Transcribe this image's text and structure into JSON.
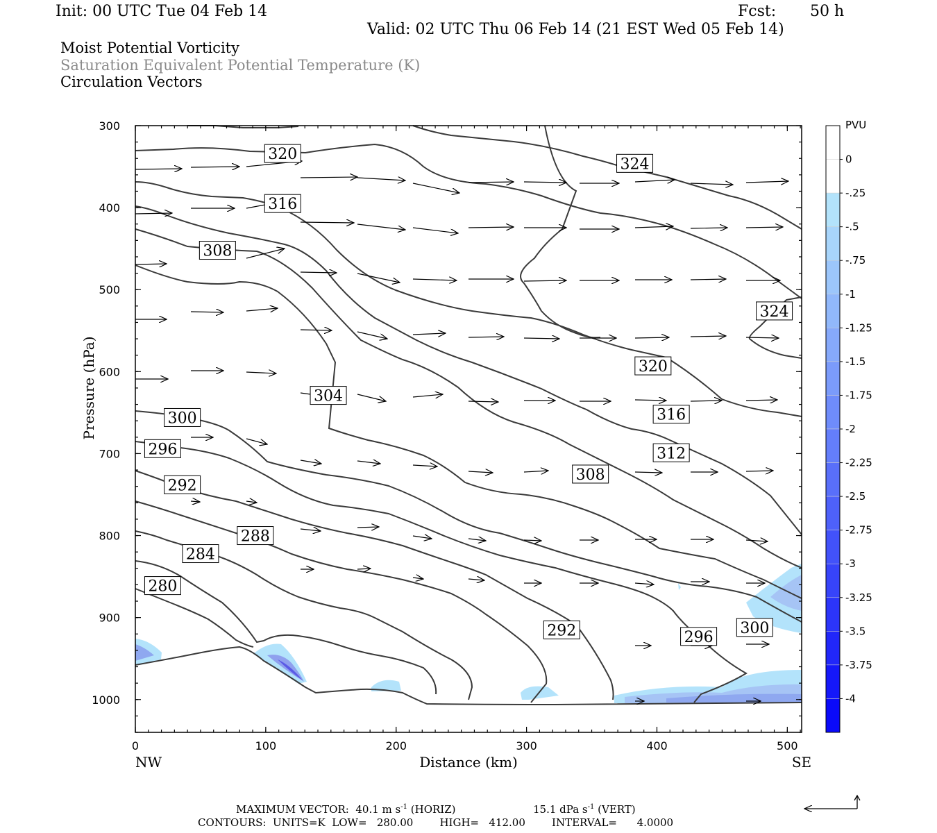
{
  "header": {
    "init": "Init: 00 UTC Tue 04 Feb 14",
    "fcst_label": "Fcst:",
    "fcst_value": "50 h",
    "valid": "Valid: 02 UTC Thu 06 Feb 14 (21 EST Wed 05 Feb 14)"
  },
  "titles": {
    "line1": "Moist Potential Vorticity",
    "line2": "Saturation Equivalent Potential Temperature (K)",
    "line3": "Circulation Vectors"
  },
  "colors": {
    "line2_text": "#8a8a8a",
    "contour": "#3a3a3a",
    "pv_shade_light": "#b3e3fb",
    "pv_shade_dark": "#5a5ae6"
  },
  "chart_data": {
    "type": "contour",
    "xlabel": "Distance (km)",
    "ylabel": "Pressure (hPa)",
    "xlim": [
      0,
      511
    ],
    "ylim": [
      1040,
      300
    ],
    "x_ticks": [
      0,
      100,
      200,
      300,
      400,
      500
    ],
    "x_tick_labels": [
      "0",
      "100",
      "200",
      "300",
      "400",
      "500"
    ],
    "y_ticks": [
      300,
      400,
      500,
      600,
      700,
      800,
      900,
      1000
    ],
    "y_tick_labels": [
      "300",
      "400",
      "500",
      "600",
      "700",
      "800",
      "900",
      "1000"
    ],
    "left_end_label": "NW",
    "right_end_label": "SE",
    "contour_units": "K",
    "contour_labels": [
      {
        "value": "320",
        "x": 113,
        "p": 334
      },
      {
        "value": "324",
        "x": 383,
        "p": 346
      },
      {
        "value": "316",
        "x": 113,
        "p": 395
      },
      {
        "value": "308",
        "x": 63,
        "p": 452
      },
      {
        "value": "324",
        "x": 490,
        "p": 526
      },
      {
        "value": "320",
        "x": 397,
        "p": 593
      },
      {
        "value": "304",
        "x": 148,
        "p": 629
      },
      {
        "value": "316",
        "x": 411,
        "p": 652
      },
      {
        "value": "300",
        "x": 36,
        "p": 656
      },
      {
        "value": "296",
        "x": 21,
        "p": 694
      },
      {
        "value": "312",
        "x": 411,
        "p": 699
      },
      {
        "value": "308",
        "x": 349,
        "p": 725
      },
      {
        "value": "292",
        "x": 36,
        "p": 738
      },
      {
        "value": "288",
        "x": 92,
        "p": 800
      },
      {
        "value": "284",
        "x": 50,
        "p": 822
      },
      {
        "value": "280",
        "x": 21,
        "p": 861
      },
      {
        "value": "292",
        "x": 327,
        "p": 915
      },
      {
        "value": "300",
        "x": 475,
        "p": 912
      },
      {
        "value": "296",
        "x": 432,
        "p": 923
      }
    ],
    "colorbar": {
      "title": "PVU",
      "labels": [
        "0",
        "-.25",
        "-.5",
        "-.75",
        "-1",
        "-1.25",
        "-1.5",
        "-1.75",
        "-2",
        "-2.25",
        "-2.5",
        "-2.75",
        "-3",
        "-3.25",
        "-3.5",
        "-3.75",
        "-4"
      ]
    }
  },
  "footer": {
    "max_vector": "MAXIMUM VECTOR:  40.1 m s",
    "horiz": "(HORIZ)",
    "vert_value": "15.1 dPa s",
    "vert": "(VERT)",
    "exponent": "-1",
    "contours": "CONTOURS:  UNITS=K  LOW=   280.00        HIGH=   412.00        INTERVAL=      4.0000"
  }
}
